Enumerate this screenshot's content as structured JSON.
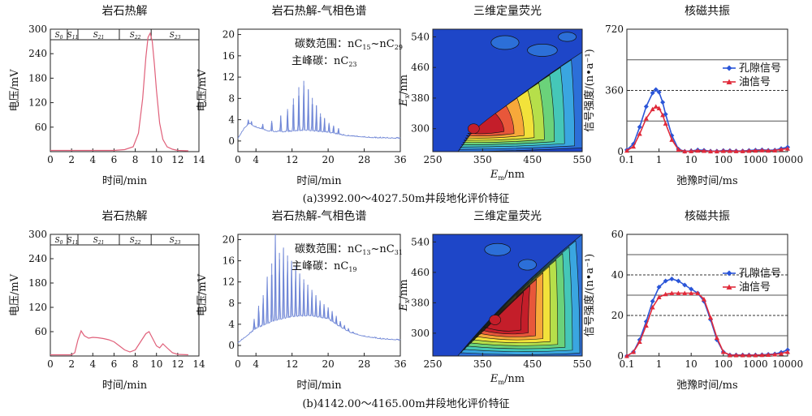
{
  "captions": [
    "(a)3992.00～4027.50m井段地化评价特征",
    "(b)4142.00～4165.00m井段地化评价特征"
  ],
  "chart_data": [
    {
      "type": "line",
      "title": "岩石热解",
      "xlabel": "时间/min",
      "ylabel": "电压/mV",
      "xlim": [
        0,
        14
      ],
      "ylim": [
        0,
        300
      ],
      "xticks": [
        0,
        2,
        4,
        6,
        8,
        10,
        12,
        14
      ],
      "yticks": [
        60,
        120,
        180,
        240,
        300
      ],
      "peak_labels": [
        {
          "main": "S",
          "sub": "0",
          "x0": 0,
          "x1": 1.6
        },
        {
          "main": "S",
          "sub": "11",
          "x0": 1.6,
          "x1": 2.6
        },
        {
          "main": "S",
          "sub": "21",
          "x0": 2.6,
          "x1": 6.5
        },
        {
          "main": "S",
          "sub": "22",
          "x0": 6.5,
          "x1": 9.5
        },
        {
          "main": "S",
          "sub": "23",
          "x0": 9.5,
          "x1": 14
        }
      ],
      "series": [
        {
          "color": "#e0607a",
          "x": [
            0,
            1,
            2,
            3,
            4,
            5,
            6,
            7,
            7.8,
            8.3,
            8.7,
            9.0,
            9.2,
            9.4,
            9.6,
            9.8,
            10.0,
            10.3,
            10.6,
            11,
            11.5,
            12,
            13
          ],
          "y": [
            3,
            3,
            3,
            3,
            3,
            3,
            3,
            5,
            12,
            45,
            130,
            230,
            280,
            290,
            270,
            215,
            150,
            70,
            30,
            12,
            6,
            3,
            2
          ]
        }
      ]
    },
    {
      "type": "line",
      "title": "岩石热解-气相色谱",
      "xlabel": "时间/min",
      "ylabel": "电压/mV",
      "xlim": [
        0,
        36
      ],
      "ylim": [
        -2,
        21
      ],
      "xticks": [
        0,
        4,
        12,
        20,
        28,
        36
      ],
      "yticks": [
        0,
        4,
        8,
        12,
        16,
        20
      ],
      "annotations": [
        {
          "text": "碳数范围：nC",
          "sub1": "15",
          "mid": "~nC",
          "sub2": "29"
        },
        {
          "text": "主峰碳：nC",
          "sub1": "23",
          "mid": "",
          "sub2": ""
        }
      ],
      "baseline": [
        {
          "x": 0,
          "y": 0.5
        },
        {
          "x": 1.5,
          "y": 2.5
        },
        {
          "x": 2.5,
          "y": 3.2
        },
        {
          "x": 4,
          "y": 2.6
        },
        {
          "x": 7,
          "y": 1.8
        },
        {
          "x": 10,
          "y": 1.7
        },
        {
          "x": 15,
          "y": 2.0
        },
        {
          "x": 20,
          "y": 1.6
        },
        {
          "x": 24,
          "y": 1.0
        },
        {
          "x": 30,
          "y": 0.6
        },
        {
          "x": 36,
          "y": 0.5
        }
      ],
      "peaks": [
        {
          "x": 2.3,
          "y": 4.0
        },
        {
          "x": 3.0,
          "y": 3.7
        },
        {
          "x": 5.5,
          "y": 3.2
        },
        {
          "x": 7.5,
          "y": 3.8
        },
        {
          "x": 9.5,
          "y": 4.8
        },
        {
          "x": 11,
          "y": 6.0
        },
        {
          "x": 12.3,
          "y": 8.0
        },
        {
          "x": 13.5,
          "y": 10.1
        },
        {
          "x": 14.6,
          "y": 11.3
        },
        {
          "x": 15.6,
          "y": 9.7
        },
        {
          "x": 16.5,
          "y": 8.1
        },
        {
          "x": 17.4,
          "y": 6.7
        },
        {
          "x": 18.3,
          "y": 5.2
        },
        {
          "x": 19.2,
          "y": 4.3
        },
        {
          "x": 20.2,
          "y": 3.4
        },
        {
          "x": 21.2,
          "y": 2.9
        },
        {
          "x": 22.3,
          "y": 2.4
        }
      ],
      "series": [
        {
          "color": "#6f86d6"
        }
      ]
    },
    {
      "type": "heatmap",
      "title": "三维定量荧光",
      "xlabel": "Em/nm",
      "ylabel": "Ex/nm",
      "xlim": [
        250,
        550
      ],
      "ylim": [
        240,
        560
      ],
      "xticks": [
        250,
        350,
        450,
        550
      ],
      "yticks": [
        300,
        380,
        460,
        540
      ],
      "ridge": {
        "start": [
          300,
          240
        ],
        "end": [
          550,
          500
        ]
      },
      "hotspot": {
        "em": 332,
        "ex": 300
      }
    },
    {
      "type": "line",
      "title": "核磁共振",
      "xlabel": "弛豫时间/ms",
      "ylabel": "信号强度/(n•a⁻¹)",
      "xscale": "log",
      "xlim": [
        0.1,
        10000
      ],
      "ylim": [
        0,
        720
      ],
      "xticks": [
        0.1,
        1,
        10,
        100,
        1000,
        10000
      ],
      "xticklabels": [
        "0.1",
        "1",
        "10",
        "100",
        "1000",
        "10000"
      ],
      "yticks": [
        0,
        360,
        720
      ],
      "hlines_solid": [
        180,
        540
      ],
      "hlines_dashed": [
        360
      ],
      "series": [
        {
          "name": "孔隙信号",
          "color": "#2a55d8",
          "marker": "diamond",
          "x": [
            0.1,
            0.16,
            0.25,
            0.4,
            0.63,
            0.8,
            1.0,
            1.3,
            1.6,
            2.5,
            4,
            6.3,
            10,
            16,
            25,
            40,
            63,
            100,
            160,
            250,
            400,
            630,
            1000,
            1600,
            2500,
            4000,
            6300,
            10000
          ],
          "y": [
            10,
            45,
            145,
            265,
            345,
            365,
            350,
            290,
            220,
            95,
            15,
            2,
            4,
            10,
            8,
            3,
            3,
            6,
            6,
            4,
            4,
            7,
            9,
            11,
            8,
            9,
            18,
            26
          ]
        },
        {
          "name": "油信号",
          "color": "#e02a3a",
          "marker": "triangle",
          "x": [
            0.1,
            0.16,
            0.25,
            0.4,
            0.63,
            0.8,
            1.0,
            1.3,
            1.6,
            2.5,
            4,
            6.3,
            10,
            16,
            25,
            40,
            63,
            100,
            160,
            250,
            400,
            630,
            1000,
            1600,
            2500,
            4000,
            6300,
            10000
          ],
          "y": [
            6,
            30,
            105,
            195,
            250,
            265,
            255,
            215,
            165,
            70,
            12,
            2,
            3,
            6,
            5,
            2,
            2,
            4,
            4,
            3,
            3,
            5,
            6,
            8,
            6,
            7,
            13,
            18
          ]
        }
      ]
    },
    {
      "type": "line",
      "title": "岩石热解",
      "xlabel": "时间/min",
      "ylabel": "电压/mV",
      "xlim": [
        0,
        14
      ],
      "ylim": [
        0,
        300
      ],
      "xticks": [
        0,
        2,
        4,
        6,
        8,
        10,
        12,
        14
      ],
      "yticks": [
        60,
        120,
        180,
        240,
        300
      ],
      "peak_labels": [
        {
          "main": "S",
          "sub": "0",
          "x0": 0,
          "x1": 1.6
        },
        {
          "main": "S",
          "sub": "11",
          "x0": 1.6,
          "x1": 2.6
        },
        {
          "main": "S",
          "sub": "21",
          "x0": 2.6,
          "x1": 6.5
        },
        {
          "main": "S",
          "sub": "22",
          "x0": 6.5,
          "x1": 9.5
        },
        {
          "main": "S",
          "sub": "23",
          "x0": 9.5,
          "x1": 14
        }
      ],
      "series": [
        {
          "color": "#e0607a",
          "x": [
            0,
            1,
            2,
            2.3,
            2.6,
            2.9,
            3.2,
            3.6,
            4,
            4.5,
            5,
            5.5,
            6,
            6.5,
            7,
            7.5,
            8,
            8.5,
            9,
            9.3,
            9.6,
            10,
            10.3,
            10.6,
            11,
            11.5,
            12,
            13
          ],
          "y": [
            3,
            3,
            3,
            8,
            40,
            62,
            50,
            44,
            46,
            45,
            43,
            40,
            35,
            25,
            15,
            10,
            15,
            35,
            55,
            60,
            45,
            25,
            20,
            30,
            20,
            8,
            4,
            3
          ]
        }
      ]
    },
    {
      "type": "line",
      "title": "岩石热解-气相色谱",
      "xlabel": "时间/min",
      "ylabel": "电压/mV",
      "xlim": [
        0,
        36
      ],
      "ylim": [
        -2,
        21
      ],
      "xticks": [
        0,
        4,
        12,
        20,
        28,
        36
      ],
      "yticks": [
        0,
        4,
        8,
        12,
        16,
        20
      ],
      "annotations": [
        {
          "text": "碳数范围：nC",
          "sub1": "13",
          "mid": "~nC",
          "sub2": "31"
        },
        {
          "text": "主峰碳：nC",
          "sub1": "19",
          "mid": "",
          "sub2": ""
        }
      ],
      "baseline": [
        {
          "x": 0,
          "y": 0.5
        },
        {
          "x": 2,
          "y": 1.8
        },
        {
          "x": 4,
          "y": 3.2
        },
        {
          "x": 8,
          "y": 4.6
        },
        {
          "x": 12,
          "y": 5.4
        },
        {
          "x": 16,
          "y": 5.6
        },
        {
          "x": 20,
          "y": 5.0
        },
        {
          "x": 22,
          "y": 3.8
        },
        {
          "x": 25,
          "y": 2.4
        },
        {
          "x": 28,
          "y": 1.7
        },
        {
          "x": 32,
          "y": 1.2
        },
        {
          "x": 36,
          "y": 1.0
        }
      ],
      "peaks": [
        {
          "x": 3.6,
          "y": 5.0
        },
        {
          "x": 4.6,
          "y": 7.5
        },
        {
          "x": 5.6,
          "y": 9.5
        },
        {
          "x": 6.5,
          "y": 13.0
        },
        {
          "x": 7.5,
          "y": 15.5
        },
        {
          "x": 8.3,
          "y": 21.0
        },
        {
          "x": 9.2,
          "y": 17.5
        },
        {
          "x": 10.1,
          "y": 18.5
        },
        {
          "x": 11.0,
          "y": 17.0
        },
        {
          "x": 11.9,
          "y": 16.0
        },
        {
          "x": 12.8,
          "y": 15.0
        },
        {
          "x": 13.7,
          "y": 13.6
        },
        {
          "x": 14.6,
          "y": 12.5
        },
        {
          "x": 15.5,
          "y": 11.5
        },
        {
          "x": 16.4,
          "y": 10.5
        },
        {
          "x": 17.3,
          "y": 9.5
        },
        {
          "x": 18.2,
          "y": 8.5
        },
        {
          "x": 19.1,
          "y": 7.8
        },
        {
          "x": 20.0,
          "y": 7.2
        },
        {
          "x": 20.9,
          "y": 6.5
        },
        {
          "x": 21.8,
          "y": 5.6
        },
        {
          "x": 22.7,
          "y": 4.6
        },
        {
          "x": 23.6,
          "y": 3.8
        },
        {
          "x": 24.5,
          "y": 3.2
        },
        {
          "x": 25.5,
          "y": 2.6
        }
      ],
      "series": [
        {
          "color": "#6f86d6"
        }
      ]
    },
    {
      "type": "heatmap",
      "title": "三维定量荧光",
      "xlabel": "Em/nm",
      "ylabel": "Ex/nm",
      "xlim": [
        250,
        550
      ],
      "ylim": [
        240,
        560
      ],
      "xticks": [
        250,
        350,
        450,
        550
      ],
      "yticks": [
        300,
        380,
        460,
        540
      ],
      "ridge": {
        "start": [
          300,
          240
        ],
        "end": [
          550,
          560
        ]
      },
      "hotspot": {
        "em": 375,
        "ex": 335
      }
    },
    {
      "type": "line",
      "title": "核磁共振",
      "xlabel": "弛豫时间/ms",
      "ylabel": "信号强度/(n•a⁻¹)",
      "xscale": "log",
      "xlim": [
        0.1,
        10000
      ],
      "ylim": [
        0,
        60
      ],
      "xticks": [
        0.1,
        1,
        10,
        100,
        1000,
        10000
      ],
      "xticklabels": [
        "0.1",
        "1",
        "10",
        "100",
        "1000",
        "10000"
      ],
      "yticks": [
        0,
        20,
        40,
        60
      ],
      "hlines_solid": [
        10,
        30,
        50
      ],
      "hlines_dashed": [
        20,
        40
      ],
      "series": [
        {
          "name": "孔隙信号",
          "color": "#2a55d8",
          "marker": "diamond",
          "x": [
            0.1,
            0.16,
            0.25,
            0.4,
            0.63,
            1,
            1.6,
            2.5,
            4,
            6.3,
            10,
            16,
            25,
            40,
            63,
            100,
            160,
            250,
            400,
            630,
            1000,
            1600,
            2500,
            4000,
            6300,
            10000
          ],
          "y": [
            0,
            2,
            8,
            17,
            27,
            34,
            37,
            38,
            37,
            35,
            33,
            31,
            27,
            18,
            8,
            2,
            0.5,
            0.5,
            0.5,
            0.5,
            0.5,
            0.6,
            0.8,
            1,
            1.8,
            3
          ]
        },
        {
          "name": "油信号",
          "color": "#e02a3a",
          "marker": "triangle",
          "x": [
            0.1,
            0.16,
            0.25,
            0.4,
            0.63,
            1,
            1.6,
            2.5,
            4,
            6.3,
            10,
            16,
            25,
            40,
            63,
            100,
            160,
            250,
            400,
            630,
            1000,
            1600,
            2500,
            4000,
            6300,
            10000
          ],
          "y": [
            0,
            2,
            7,
            15,
            24,
            29,
            30.5,
            31,
            31,
            31,
            31,
            31,
            28,
            19,
            9,
            2,
            0.4,
            0.4,
            0.4,
            0.4,
            0.4,
            0.5,
            0.6,
            0.8,
            1.2,
            2
          ]
        }
      ]
    }
  ]
}
